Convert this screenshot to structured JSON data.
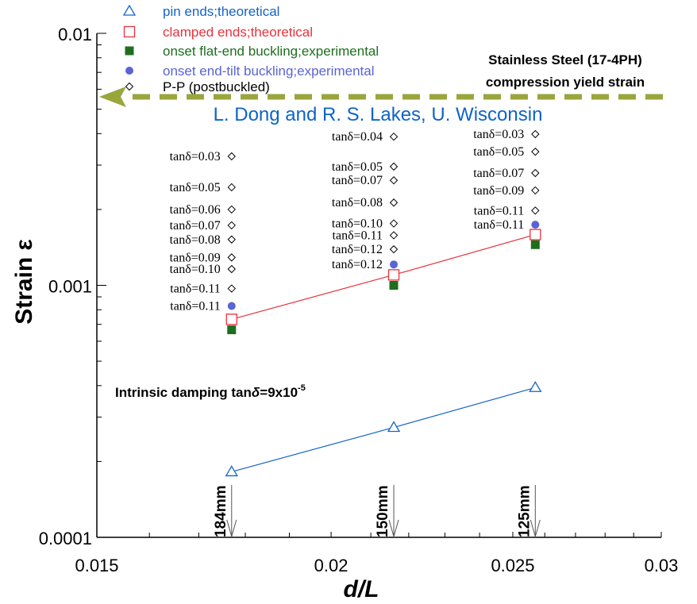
{
  "chart_data": {
    "type": "scatter",
    "title": "",
    "xlabel": "d/L",
    "ylabel": "Strain ε",
    "xscale": "log",
    "yscale": "log",
    "xlim": [
      0.015,
      0.03
    ],
    "ylim": [
      0.0001,
      0.01
    ],
    "x_ticks": [
      {
        "value": 0.015,
        "label": "0.015"
      },
      {
        "value": 0.02,
        "label": "0.02"
      },
      {
        "value": 0.025,
        "label": "0.025"
      },
      {
        "value": 0.03,
        "label": "0.03"
      }
    ],
    "x_minor_ticks": [
      0.016,
      0.017,
      0.018,
      0.019,
      0.021,
      0.022,
      0.023,
      0.024,
      0.026,
      0.027,
      0.028,
      0.029
    ],
    "y_ticks": [
      {
        "value": 0.0001,
        "label": "0.0001"
      },
      {
        "value": 0.001,
        "label": "0.001"
      },
      {
        "value": 0.01,
        "label": "0.01"
      }
    ],
    "grid": false,
    "legend_position": "top",
    "x": [
      0.0177,
      0.0216,
      0.0257
    ],
    "series": [
      {
        "name": "pin ends;theoretical",
        "marker": "triangle-open",
        "color": "#1464c8",
        "line": true,
        "values": [
          0.000182,
          0.000273,
          0.000393
        ]
      },
      {
        "name": "clamped ends;theoretical",
        "marker": "square-open",
        "color": "#e8323c",
        "line": true,
        "values": [
          0.000733,
          0.0011,
          0.00159
        ]
      },
      {
        "name": "onset flat-end buckling;experimental",
        "marker": "square-filled",
        "color": "#1e6e1e",
        "line": false,
        "values": [
          0.000666,
          0.001,
          0.00145
        ]
      },
      {
        "name": "onset end-tilt buckling;experimental",
        "marker": "circle-filled",
        "color": "#5a64d2",
        "line": false,
        "values": [
          0.000828,
          0.00121,
          0.00174
        ]
      },
      {
        "name": "P-P (postbuckled)",
        "marker": "diamond-open",
        "color": "#000000",
        "line": false,
        "groups": [
          {
            "x": 0.0177,
            "values": [
              0.00325,
              0.00245,
              0.002,
              0.00173,
              0.00152,
              0.00129,
              0.00116,
              0.000971
            ]
          },
          {
            "x": 0.0216,
            "values": [
              0.00389,
              0.00296,
              0.00261,
              0.00213,
              0.00176,
              0.00158,
              0.00139
            ]
          },
          {
            "x": 0.0257,
            "values": [
              0.00398,
              0.00339,
              0.00279,
              0.00238,
              0.00198
            ]
          }
        ]
      }
    ],
    "tan_labels": [
      {
        "x": 0.0177,
        "labels": [
          {
            "text": "tanδ=0.03",
            "y": 0.00325
          },
          {
            "text": "tanδ=0.05",
            "y": 0.00245
          },
          {
            "text": "tanδ=0.06",
            "y": 0.002
          },
          {
            "text": "tanδ=0.07",
            "y": 0.00173
          },
          {
            "text": "tanδ=0.08",
            "y": 0.00152
          },
          {
            "text": "tanδ=0.09",
            "y": 0.00129
          },
          {
            "text": "tanδ=0.10",
            "y": 0.00116
          },
          {
            "text": "tanδ=0.11",
            "y": 0.000971
          },
          {
            "text": "tanδ=0.11",
            "y": 0.000828
          }
        ]
      },
      {
        "x": 0.0216,
        "labels": [
          {
            "text": "tanδ=0.04",
            "y": 0.00389
          },
          {
            "text": "tanδ=0.05",
            "y": 0.00296
          },
          {
            "text": "tanδ=0.07",
            "y": 0.00261
          },
          {
            "text": "tanδ=0.08",
            "y": 0.00213
          },
          {
            "text": "tanδ=0.10",
            "y": 0.00176
          },
          {
            "text": "tanδ=0.11",
            "y": 0.00158
          },
          {
            "text": "tanδ=0.12",
            "y": 0.00139
          },
          {
            "text": "tanδ=0.12",
            "y": 0.00121
          }
        ]
      },
      {
        "x": 0.0257,
        "labels": [
          {
            "text": "tanδ=0.03",
            "y": 0.00398
          },
          {
            "text": "tanδ=0.05",
            "y": 0.00339
          },
          {
            "text": "tanδ=0.07",
            "y": 0.00279
          },
          {
            "text": "tanδ=0.09",
            "y": 0.00238
          },
          {
            "text": "tanδ=0.11",
            "y": 0.00198
          },
          {
            "text": "tanδ=0.11",
            "y": 0.00174
          }
        ]
      }
    ],
    "annotations": {
      "yield_line": {
        "value": 0.0056,
        "color": "#9aa53c",
        "label_line1": "Stainless Steel (17-4PH)",
        "label_line2": "compression yield strain"
      },
      "credit": "L. Dong and R. S. Lakes, U. Wisconsin",
      "intrinsic_prefix": "Intrinsic damping tan",
      "intrinsic_delta": "δ",
      "intrinsic_suffix": "=9x10",
      "intrinsic_exp": "-5",
      "lengths": [
        {
          "x": 0.0177,
          "label": "184mm"
        },
        {
          "x": 0.0216,
          "label": "150mm"
        },
        {
          "x": 0.0257,
          "label": "125mm"
        }
      ]
    }
  }
}
